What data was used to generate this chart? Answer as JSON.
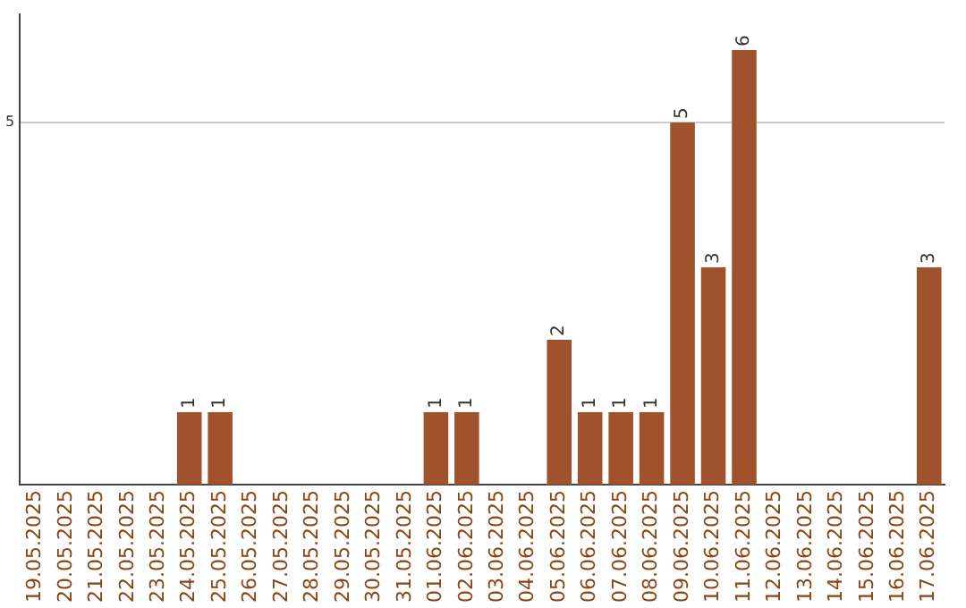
{
  "chart_data": {
    "type": "bar",
    "categories": [
      "19.05.2025",
      "20.05.2025",
      "21.05.2025",
      "22.05.2025",
      "23.05.2025",
      "24.05.2025",
      "25.05.2025",
      "26.05.2025",
      "27.05.2025",
      "28.05.2025",
      "29.05.2025",
      "30.05.2025",
      "31.05.2025",
      "01.06.2025",
      "02.06.2025",
      "03.06.2025",
      "04.06.2025",
      "05.06.2025",
      "06.06.2025",
      "07.06.2025",
      "08.06.2025",
      "09.06.2025",
      "10.06.2025",
      "11.06.2025",
      "12.06.2025",
      "13.06.2025",
      "14.06.2025",
      "15.06.2025",
      "16.06.2025",
      "17.06.2025"
    ],
    "values": [
      0,
      0,
      0,
      0,
      0,
      1,
      1,
      0,
      0,
      0,
      0,
      0,
      0,
      1,
      1,
      0,
      0,
      2,
      1,
      1,
      1,
      5,
      3,
      6,
      0,
      0,
      0,
      0,
      0,
      3
    ],
    "value_labels": [
      null,
      null,
      null,
      null,
      null,
      "1",
      "1",
      null,
      null,
      null,
      null,
      null,
      null,
      "1",
      "1",
      null,
      null,
      "2",
      "1",
      "1",
      "1",
      "5",
      "3",
      "6",
      null,
      null,
      null,
      null,
      null,
      "3"
    ],
    "color": "#a0522d",
    "ylim": [
      0,
      6.5
    ],
    "yticks": [
      5
    ],
    "grid": "y",
    "legend": false
  }
}
